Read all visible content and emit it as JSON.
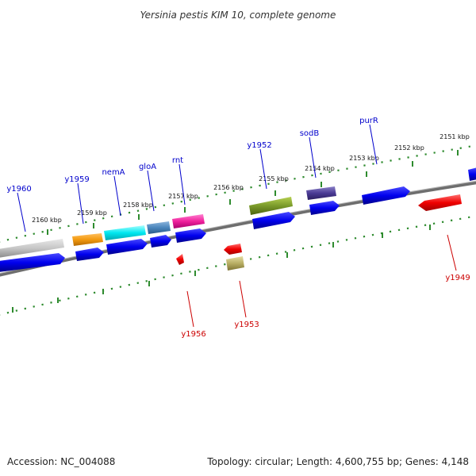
{
  "title": "Yersinia pestis KIM 10, complete genome",
  "footer": {
    "accession": "Accession: NC_004088",
    "summary": "Topology: circular; Length: 4,600,755 bp; Genes: 4,148"
  },
  "colors": {
    "backbone": "#7a7a7a",
    "tick": "#2e8b2e",
    "forward_label": "#0000cc",
    "reverse_label": "#cc0000"
  },
  "tick_labels": [
    "2160 kbp",
    "2159 kbp",
    "2158 kbp",
    "2157 kbp",
    "2156 kbp",
    "2155 kbp",
    "2154 kbp",
    "2153 kbp",
    "2152 kbp",
    "2151 kbp"
  ],
  "gene_labels": {
    "y1960": "y1960",
    "y1959": "y1959",
    "nemA": "nemA",
    "gloA": "gloA",
    "rnt": "rnt",
    "y1952": "y1952",
    "sodB": "sodB",
    "purR": "purR",
    "y1956": "y1956",
    "y1953": "y1953",
    "y1949": "y1949"
  }
}
